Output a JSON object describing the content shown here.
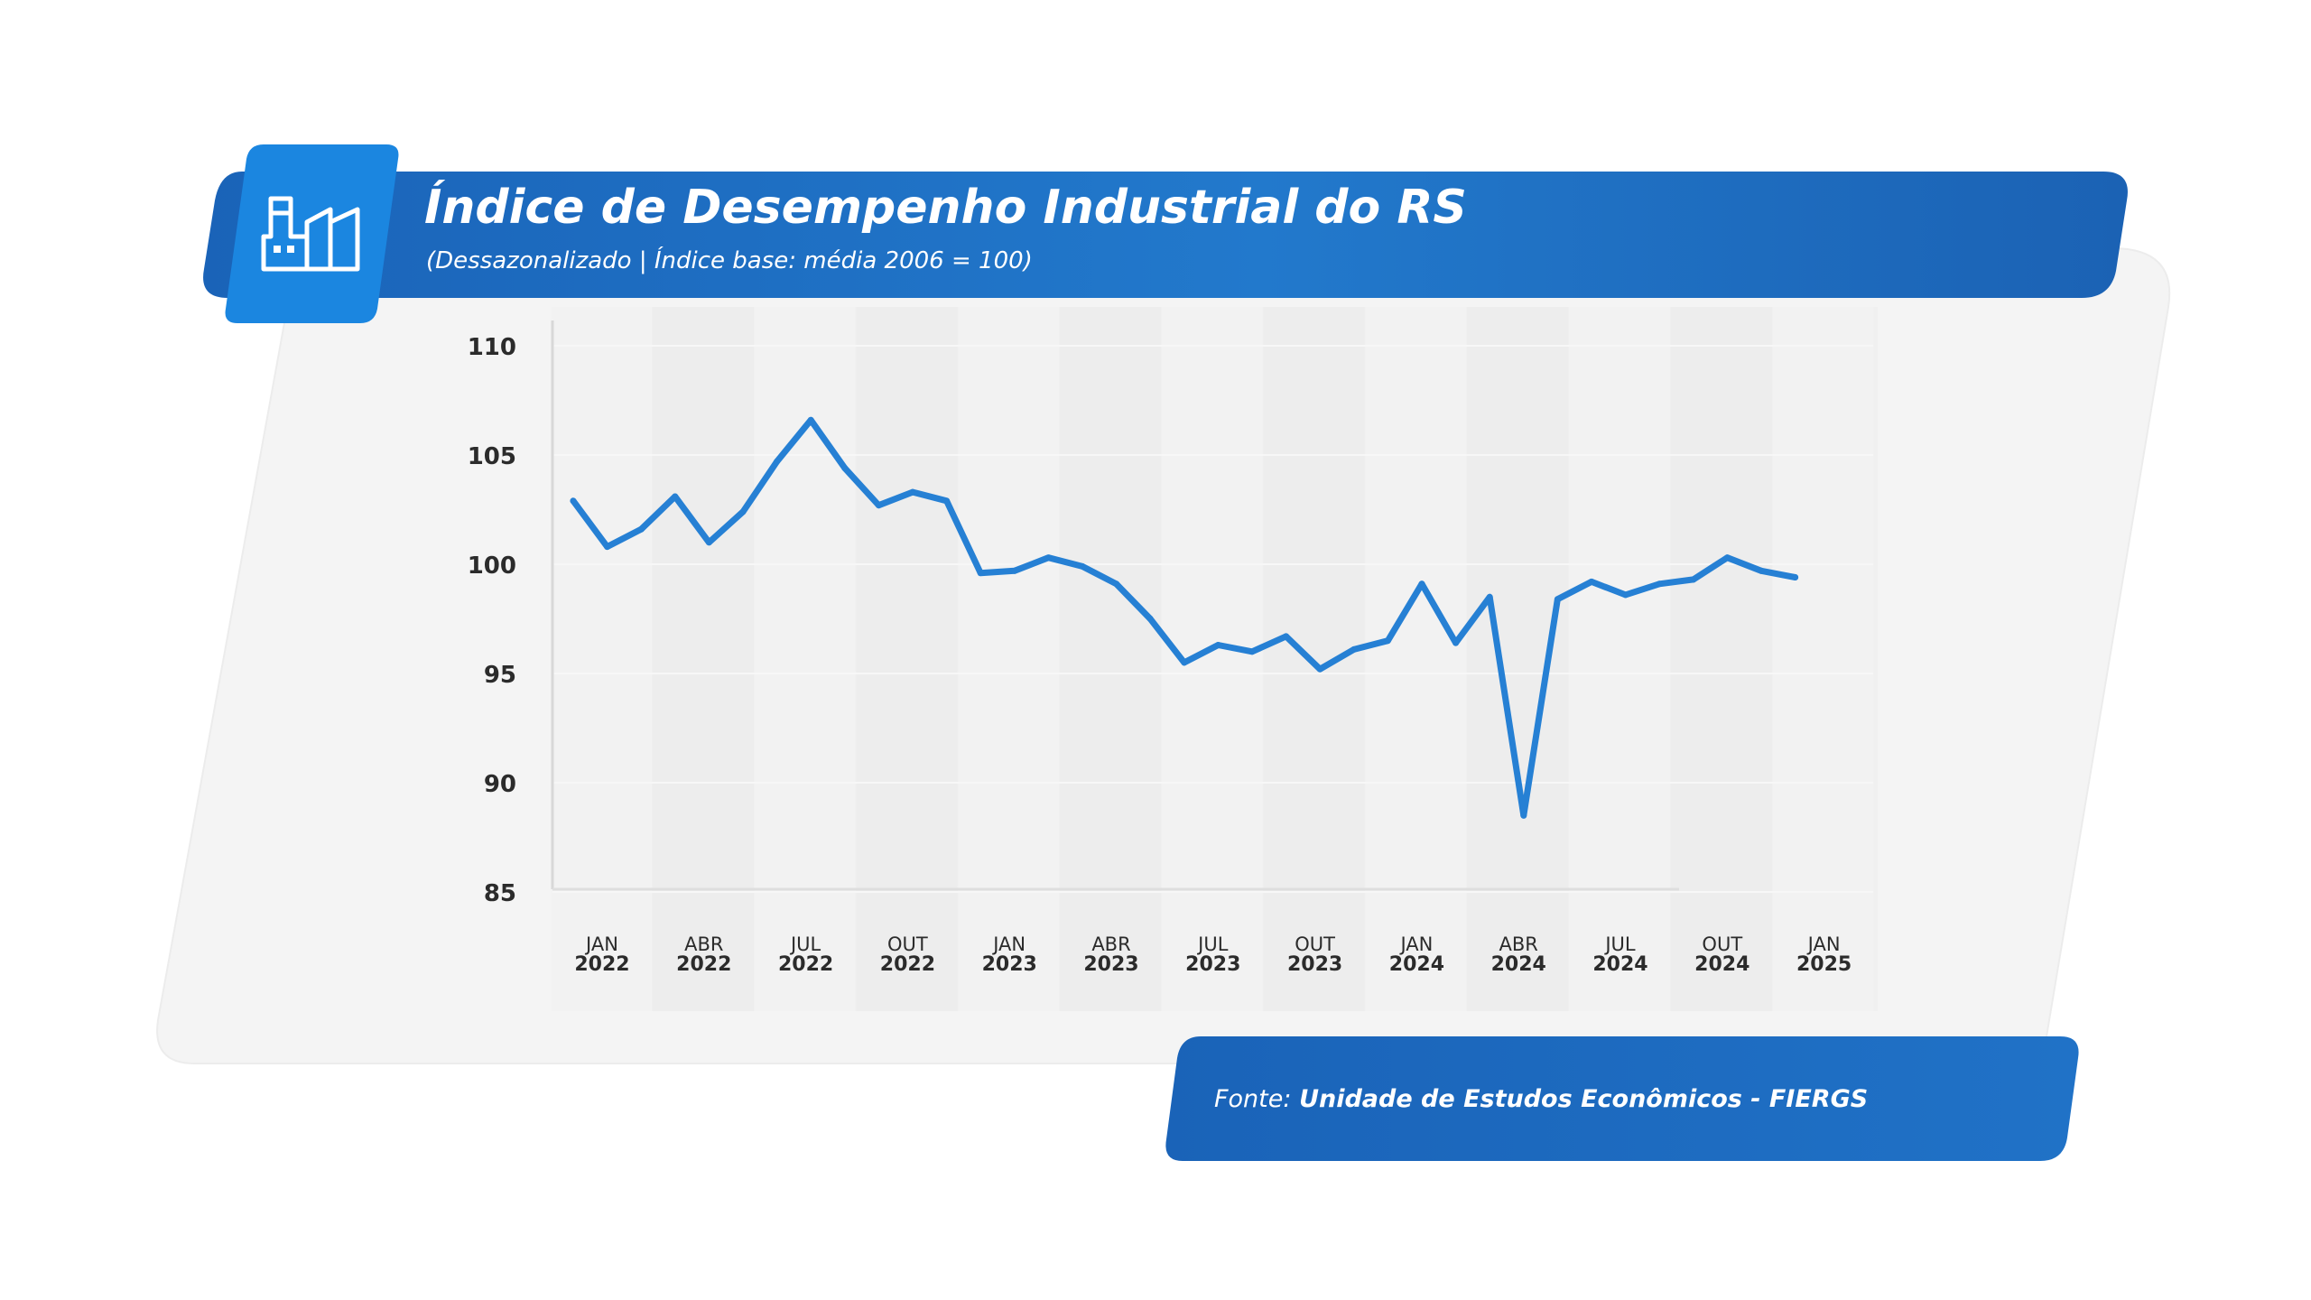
{
  "header": {
    "title": "Índice de Desempenho Industrial do RS",
    "subtitle": "(Dessazonalizado | Índice base: média 2006 = 100)"
  },
  "footer": {
    "source_prefix": "Fonte:",
    "source_name": "Unidade de Estudos Econômicos - FIERGS"
  },
  "colors": {
    "brand_blue": "#1e6ec4",
    "icon_blue": "#1b86e0",
    "line": "#2680d4",
    "panel": "#f4f4f4"
  },
  "icons": {
    "header_icon": "factory-icon"
  },
  "chart_data": {
    "type": "line",
    "title": "Índice de Desempenho Industrial do RS",
    "subtitle": "(Dessazonalizado | Índice base: média 2006 = 100)",
    "ylim": [
      85,
      110
    ],
    "yticks": [
      "110",
      "105",
      "100",
      "95",
      "90",
      "85"
    ],
    "ytick_values": [
      110,
      105,
      100,
      95,
      90,
      85
    ],
    "xticks": [
      {
        "month": "JAN",
        "year": "2022",
        "index": 0
      },
      {
        "month": "ABR",
        "year": "2022",
        "index": 3
      },
      {
        "month": "JUL",
        "year": "2022",
        "index": 6
      },
      {
        "month": "OUT",
        "year": "2022",
        "index": 9
      },
      {
        "month": "JAN",
        "year": "2023",
        "index": 12
      },
      {
        "month": "ABR",
        "year": "2023",
        "index": 15
      },
      {
        "month": "JUL",
        "year": "2023",
        "index": 18
      },
      {
        "month": "OUT",
        "year": "2023",
        "index": 21
      },
      {
        "month": "JAN",
        "year": "2024",
        "index": 24
      },
      {
        "month": "ABR",
        "year": "2024",
        "index": 27
      },
      {
        "month": "JUL",
        "year": "2024",
        "index": 30
      },
      {
        "month": "OUT",
        "year": "2024",
        "index": 33
      },
      {
        "month": "JAN",
        "year": "2025",
        "index": 36
      }
    ],
    "series": [
      {
        "values": [
          102.9,
          100.8,
          101.6,
          103.1,
          101.0,
          102.4,
          104.7,
          106.6,
          104.4,
          102.7,
          103.3,
          102.9,
          99.6,
          99.7,
          100.3,
          99.9,
          99.1,
          97.5,
          95.5,
          96.3,
          96.0,
          96.7,
          95.2,
          96.1,
          96.5,
          99.1,
          96.4,
          98.5,
          88.5,
          98.4,
          99.2,
          98.6,
          99.1,
          99.3,
          100.3,
          99.7,
          99.4
        ]
      }
    ]
  }
}
